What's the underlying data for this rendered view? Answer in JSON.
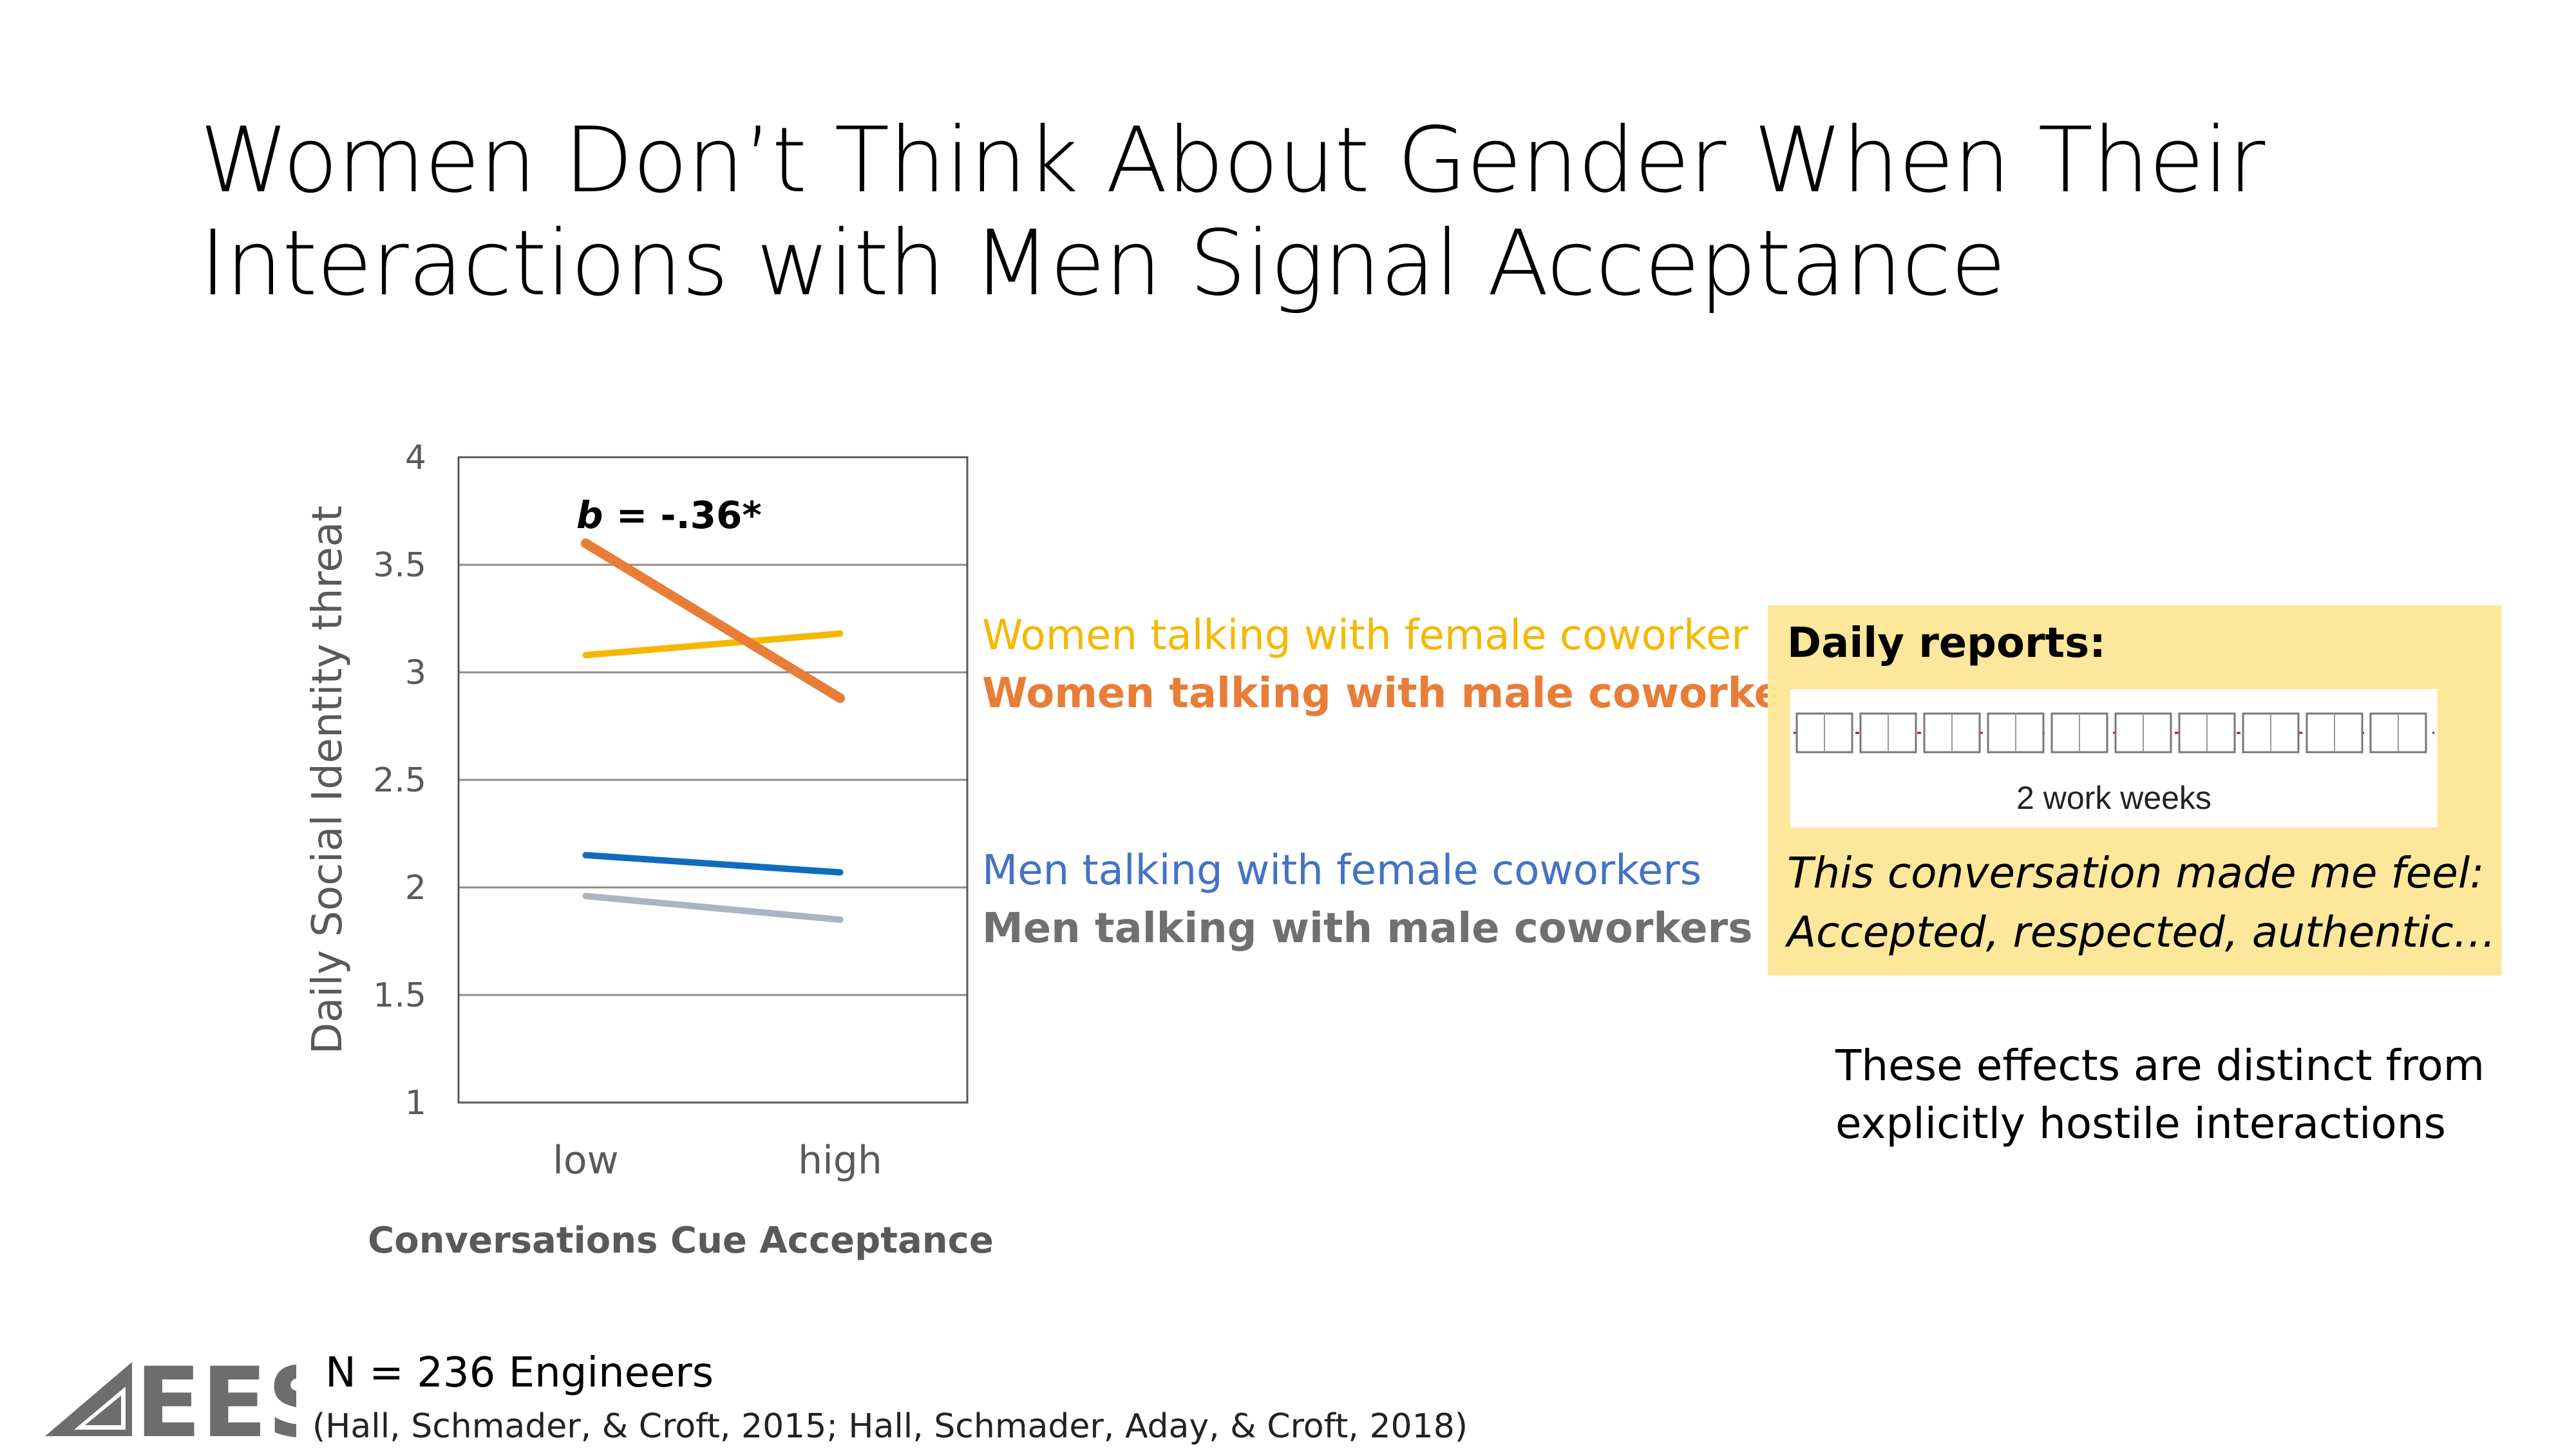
{
  "slide": {
    "title_line1": "Women Don’t Think About Gender When Their",
    "title_line2": "Interactions with Men Signal Acceptance"
  },
  "chart_data": {
    "type": "line",
    "categories": [
      "low",
      "high"
    ],
    "xlabel": "Conversations Cue Acceptance",
    "ylabel": "Daily Social Identity threat",
    "ylim": [
      1,
      4
    ],
    "yticks": [
      1,
      1.5,
      2,
      2.5,
      3,
      3.5,
      4
    ],
    "ytick_labels": [
      "1",
      "1.5",
      "2",
      "2.5",
      "3",
      "3.5",
      "4"
    ],
    "grid": true,
    "annotation": {
      "italic_part": "b",
      "rest": " = -.36*"
    },
    "series": [
      {
        "name": "Women talking with female coworker",
        "values": [
          3.08,
          3.18
        ],
        "color": "#f5b800",
        "bold": false
      },
      {
        "name": "Women talking with male coworkers",
        "values": [
          3.6,
          2.88
        ],
        "color": "#e87d37",
        "bold": true
      },
      {
        "name": "Men talking with female coworkers",
        "values": [
          2.15,
          2.07
        ],
        "color": "#0f6cbd",
        "label_color": "#4472c4",
        "bold": false
      },
      {
        "name": "Men talking with male coworkers",
        "values": [
          1.96,
          1.85
        ],
        "color": "#aab4c3",
        "label_color": "#707070",
        "bold": true
      }
    ]
  },
  "daily_reports": {
    "title": "Daily reports:",
    "image_caption": "2 work weeks",
    "quote_line1": "This conversation made me feel:",
    "quote_line2": "Accepted, respected, authentic…"
  },
  "note": {
    "line1": "These effects are distinct from",
    "line2": "explicitly hostile interactions"
  },
  "footer": {
    "sample_size": "N = 236 Engineers",
    "citation": "(Hall, Schmader, & Croft, 2015; Hall, Schmader, Aday, & Croft, 2018)",
    "logo_text": "EES"
  }
}
